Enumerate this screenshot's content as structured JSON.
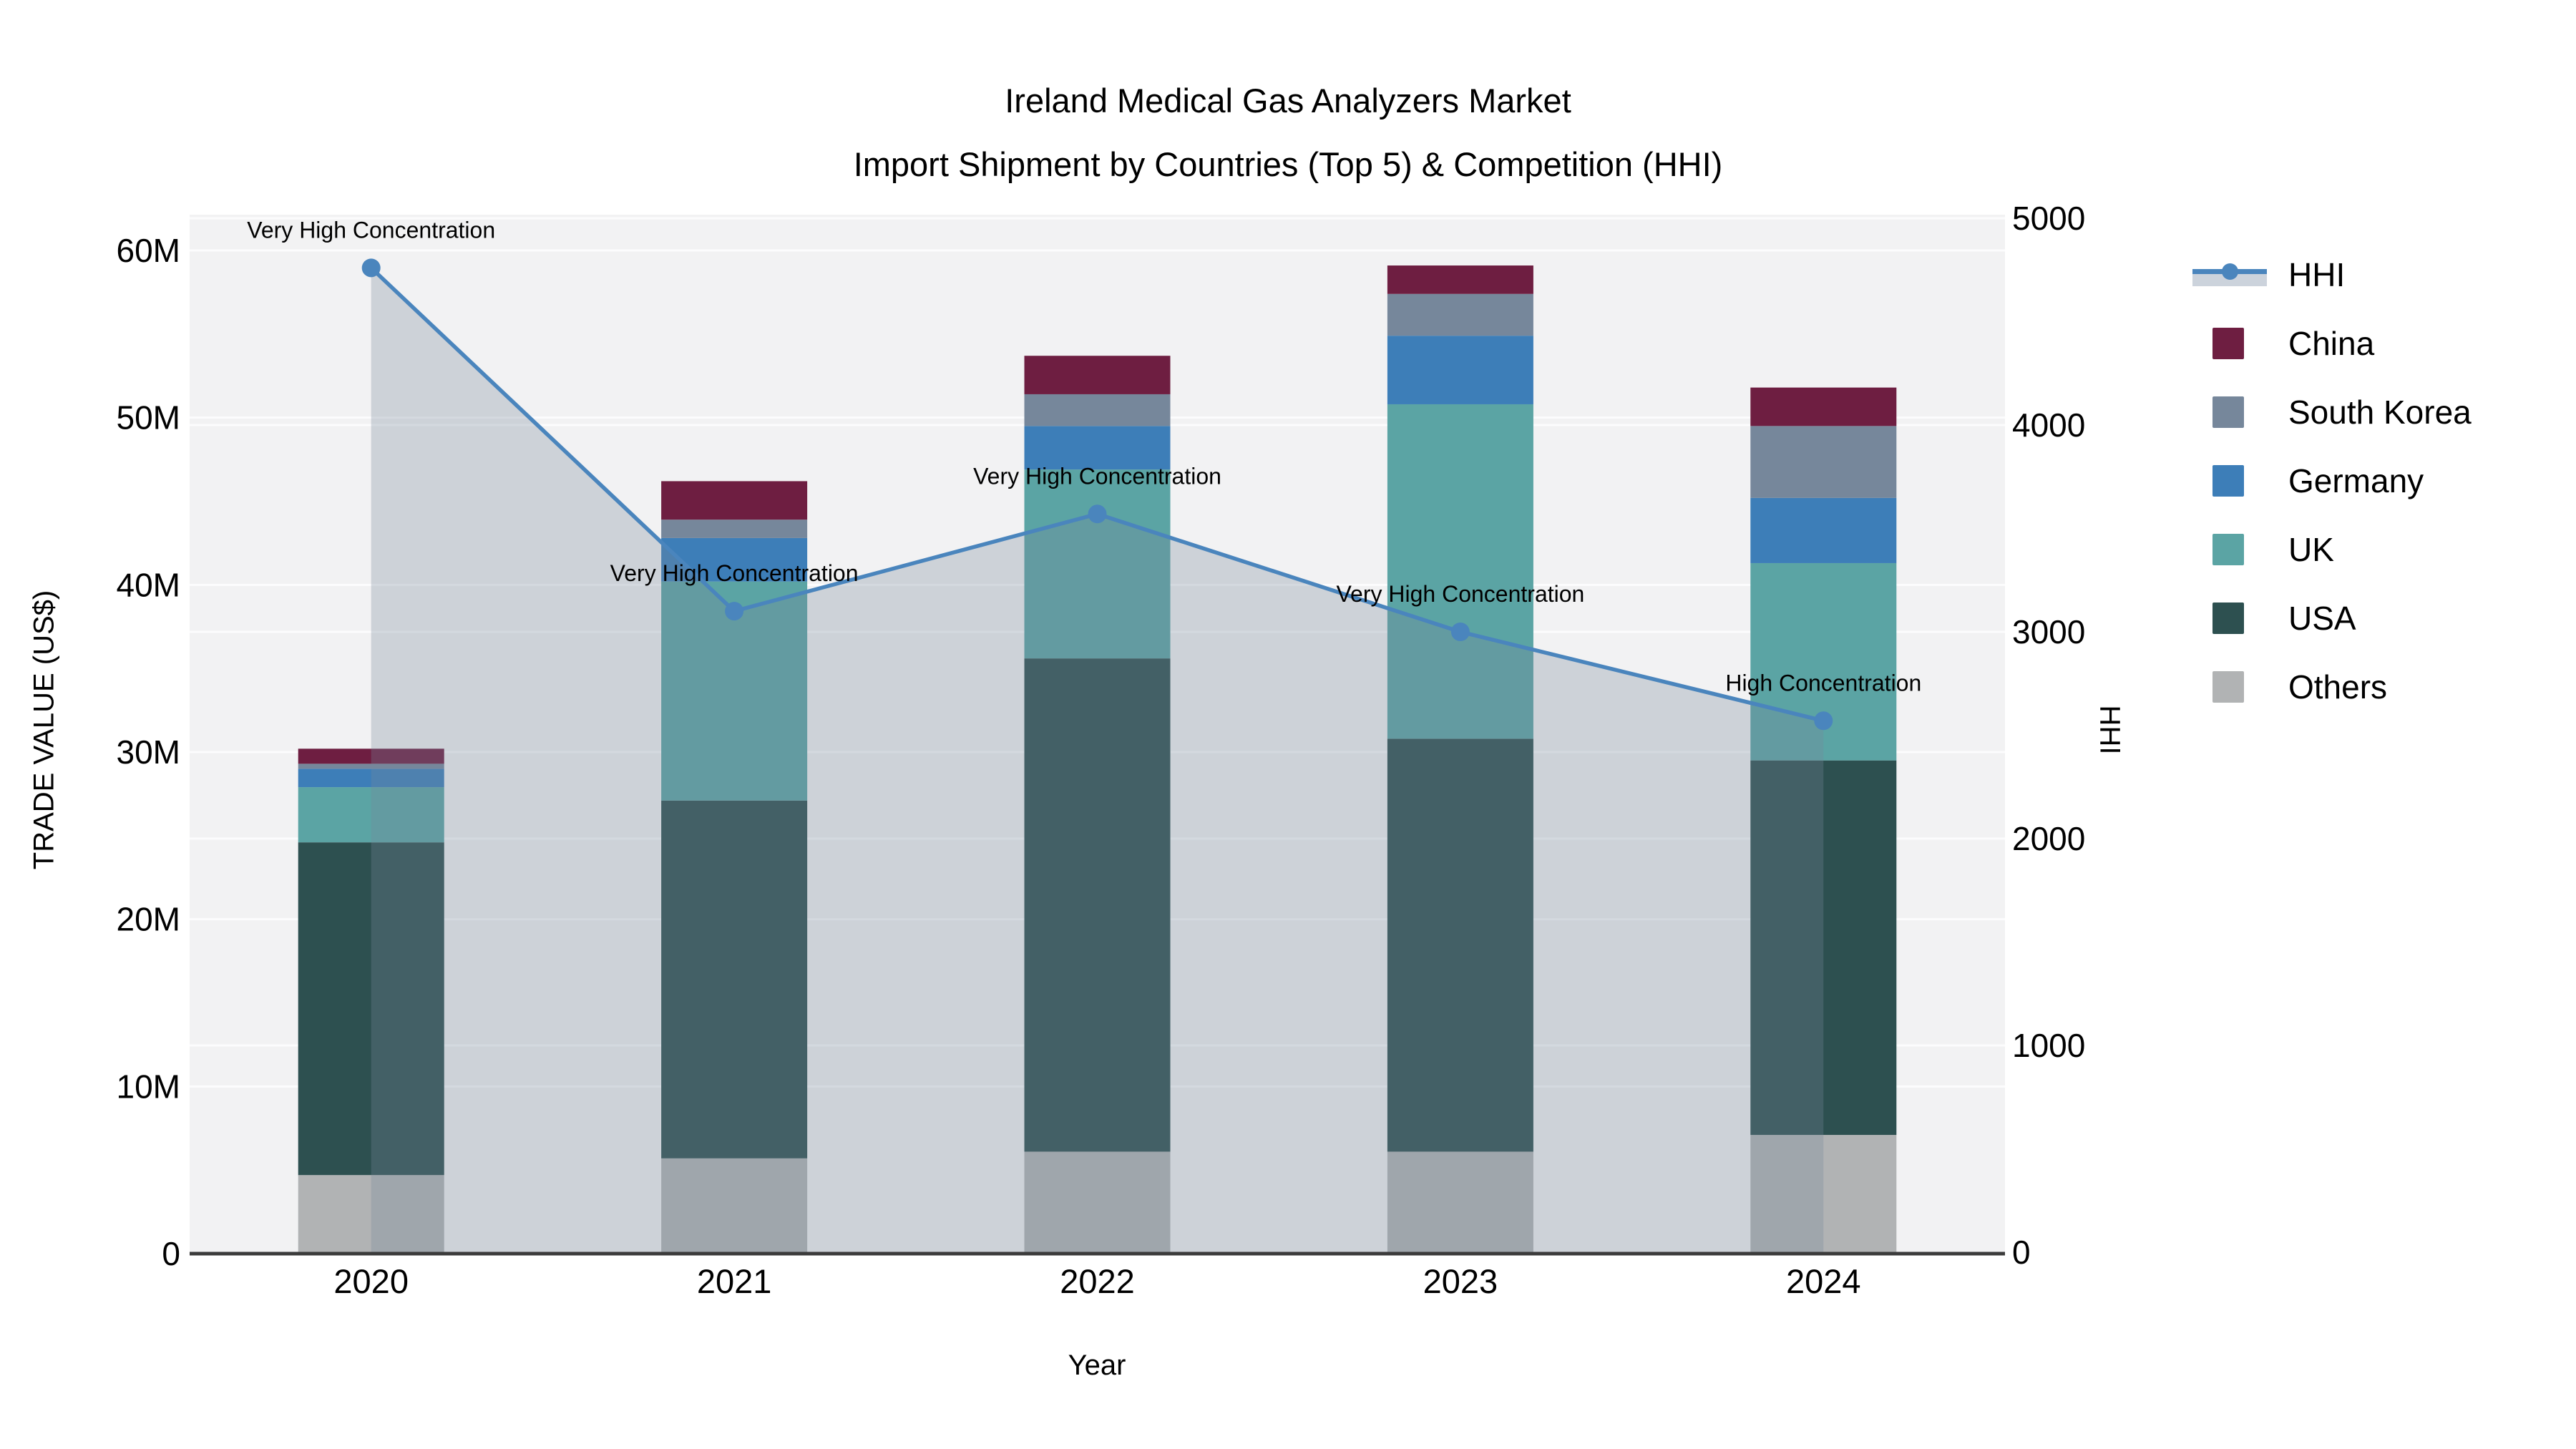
{
  "title": {
    "line1": "Ireland Medical Gas Analyzers Market",
    "line2": "Import Shipment by Countries (Top 5) & Competition (HHI)"
  },
  "legend": {
    "entries": [
      {
        "label": "HHI",
        "type": "line",
        "color": "#4a85bd",
        "band_color": "#ccd3dc"
      },
      {
        "label": "China",
        "type": "square",
        "color": "#6e1e41"
      },
      {
        "label": "South Korea",
        "type": "square",
        "color": "#76879b"
      },
      {
        "label": "Germany",
        "type": "square",
        "color": "#3d7eb8"
      },
      {
        "label": "UK",
        "type": "square",
        "color": "#5ba4a4"
      },
      {
        "label": "USA",
        "type": "square",
        "color": "#2d5050"
      },
      {
        "label": "Others",
        "type": "square",
        "color": "#b1b3b4"
      }
    ]
  },
  "chart_data": {
    "type": "combo: stacked bar + line-area",
    "title": "Ireland Medical Gas Analyzers Market — Import Shipment by Countries (Top 5) & Competition (HHI)",
    "categories": [
      "2020",
      "2021",
      "2022",
      "2023",
      "2024"
    ],
    "bar_unit": "million US$",
    "series": [
      {
        "name": "Others",
        "color": "#b1b3b4",
        "values": [
          4.7,
          5.7,
          6.1,
          6.1,
          7.1
        ]
      },
      {
        "name": "USA",
        "color": "#2d5050",
        "values": [
          19.9,
          21.4,
          29.5,
          24.7,
          22.4
        ]
      },
      {
        "name": "UK",
        "color": "#5ba4a4",
        "values": [
          3.3,
          13.1,
          11.3,
          20.0,
          11.8
        ]
      },
      {
        "name": "Germany",
        "color": "#3d7eb8",
        "values": [
          1.1,
          2.6,
          2.6,
          4.1,
          3.9
        ]
      },
      {
        "name": "South Korea",
        "color": "#76879b",
        "values": [
          0.3,
          1.1,
          1.9,
          2.5,
          4.3
        ]
      },
      {
        "name": "China",
        "color": "#6e1e41",
        "values": [
          0.9,
          2.3,
          2.3,
          1.7,
          2.3
        ]
      }
    ],
    "line_series": {
      "name": "HHI",
      "color": "#4a85bd",
      "area_fill": "rgba(120,135,155,0.30)",
      "values": [
        4760,
        3100,
        3570,
        3000,
        2570
      ]
    },
    "annotations": [
      {
        "category": "2020",
        "text": "Very High Concentration"
      },
      {
        "category": "2021",
        "text": "Very High Concentration"
      },
      {
        "category": "2022",
        "text": "Very High Concentration"
      },
      {
        "category": "2023",
        "text": "Very High Concentration"
      },
      {
        "category": "2024",
        "text": "High Concentration"
      }
    ],
    "y_left": {
      "label": "TRADE VALUE (US$)",
      "tick_labels": [
        "0",
        "10M",
        "20M",
        "30M",
        "40M",
        "50M",
        "60M"
      ],
      "tick_values_M": [
        0,
        10,
        20,
        30,
        40,
        50,
        60
      ],
      "range_M": [
        0,
        60
      ]
    },
    "y_right": {
      "label": "HHI",
      "tick_labels": [
        "0",
        "1000",
        "2000",
        "3000",
        "4000",
        "5000"
      ],
      "tick_values": [
        0,
        1000,
        2000,
        3000,
        4000,
        5000
      ],
      "range": [
        0,
        5000
      ]
    },
    "x_axis": {
      "label": "Year"
    },
    "grid": true,
    "legend_position": "right"
  },
  "style": {
    "plot_bg": "#f2f2f3",
    "grid_color": "#fcfcfd",
    "axis_line_color": "#3b3b3b",
    "text_color": "#000000"
  }
}
